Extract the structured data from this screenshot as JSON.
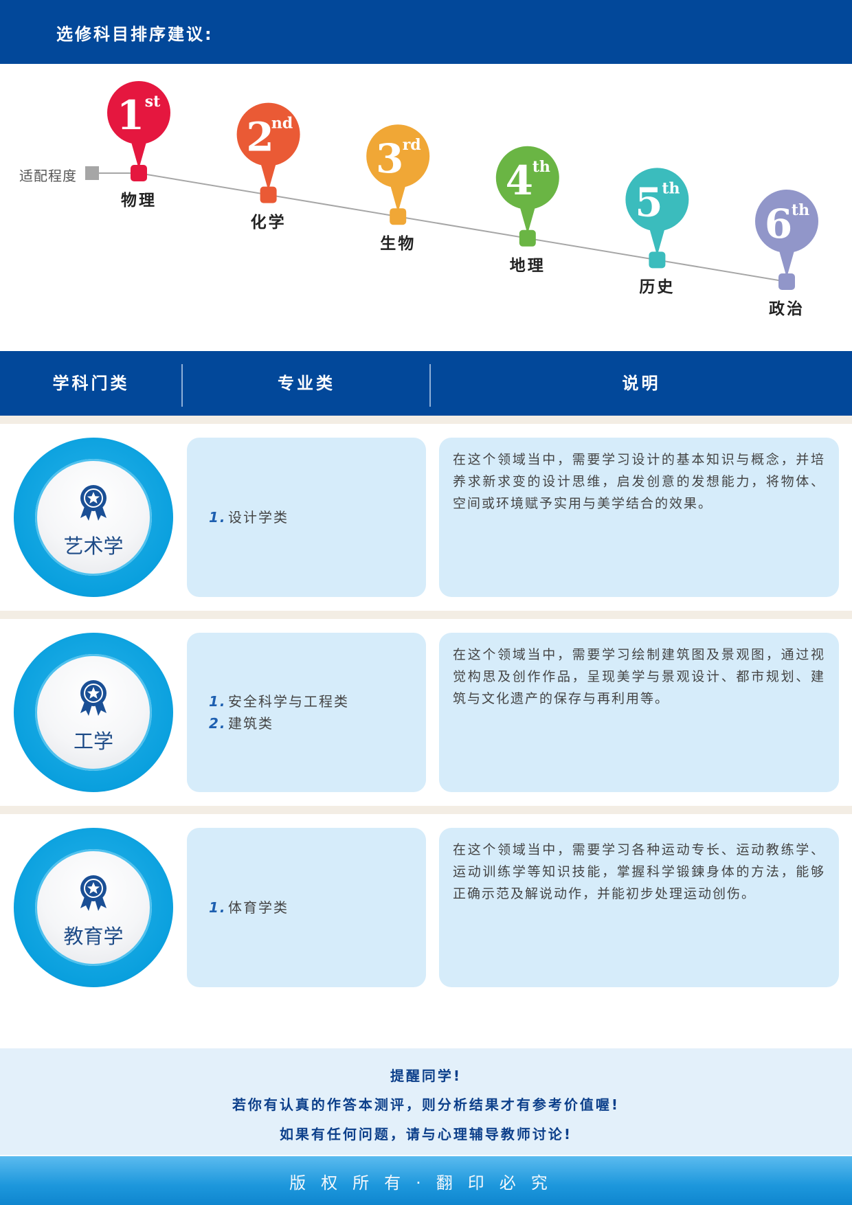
{
  "header": {
    "title": "选修科目排序建议:"
  },
  "ranking": {
    "axis_label": "适配程度",
    "items": [
      {
        "rank_number": "1",
        "rank_suffix": "st",
        "subject": "物理",
        "color": "#e5173f"
      },
      {
        "rank_number": "2",
        "rank_suffix": "nd",
        "subject": "化学",
        "color": "#ea5a35"
      },
      {
        "rank_number": "3",
        "rank_suffix": "rd",
        "subject": "生物",
        "color": "#f0a736"
      },
      {
        "rank_number": "4",
        "rank_suffix": "th",
        "subject": "地理",
        "color": "#6ab544"
      },
      {
        "rank_number": "5",
        "rank_suffix": "th",
        "subject": "历史",
        "color": "#3bbcbd"
      },
      {
        "rank_number": "6",
        "rank_suffix": "th",
        "subject": "政治",
        "color": "#9196c9"
      }
    ]
  },
  "table": {
    "headers": [
      "学科门类",
      "专业类",
      "说明"
    ],
    "rows": [
      {
        "field": "艺术学",
        "majors": [
          {
            "num": "1.",
            "name": "设计学类"
          }
        ],
        "description": "在这个领域当中，需要学习设计的基本知识与概念，并培养求新求变的设计思维，启发创意的发想能力，将物体、空间或环境赋予实用与美学结合的效果。"
      },
      {
        "field": "工学",
        "majors": [
          {
            "num": "1.",
            "name": "安全科学与工程类"
          },
          {
            "num": "2.",
            "name": "建筑类"
          }
        ],
        "description": "在这个领域当中，需要学习绘制建筑图及景观图，通过视觉构思及创作作品，呈现美学与景观设计、都市规划、建筑与文化遗产的保存与再利用等。"
      },
      {
        "field": "教育学",
        "majors": [
          {
            "num": "1.",
            "name": "体育学类"
          }
        ],
        "description": "在这个领域当中，需要学习各种运动专长、运动教练学、运动训练学等知识技能，掌握科学锻鍊身体的方法，能够正确示范及解说动作，并能初步处理运动创伤。"
      }
    ]
  },
  "notice": {
    "line1": "提醒同学!",
    "line2": "若你有认真的作答本测评，则分析结果才有参考价值喔!",
    "line3": "如果有任何问题，请与心理辅导教师讨论!"
  },
  "footer": {
    "copyright": "版权所有·翻印必究"
  },
  "colors": {
    "primary": "#02489a",
    "box": "#d6ecfa",
    "badge": "#0aa0de"
  }
}
